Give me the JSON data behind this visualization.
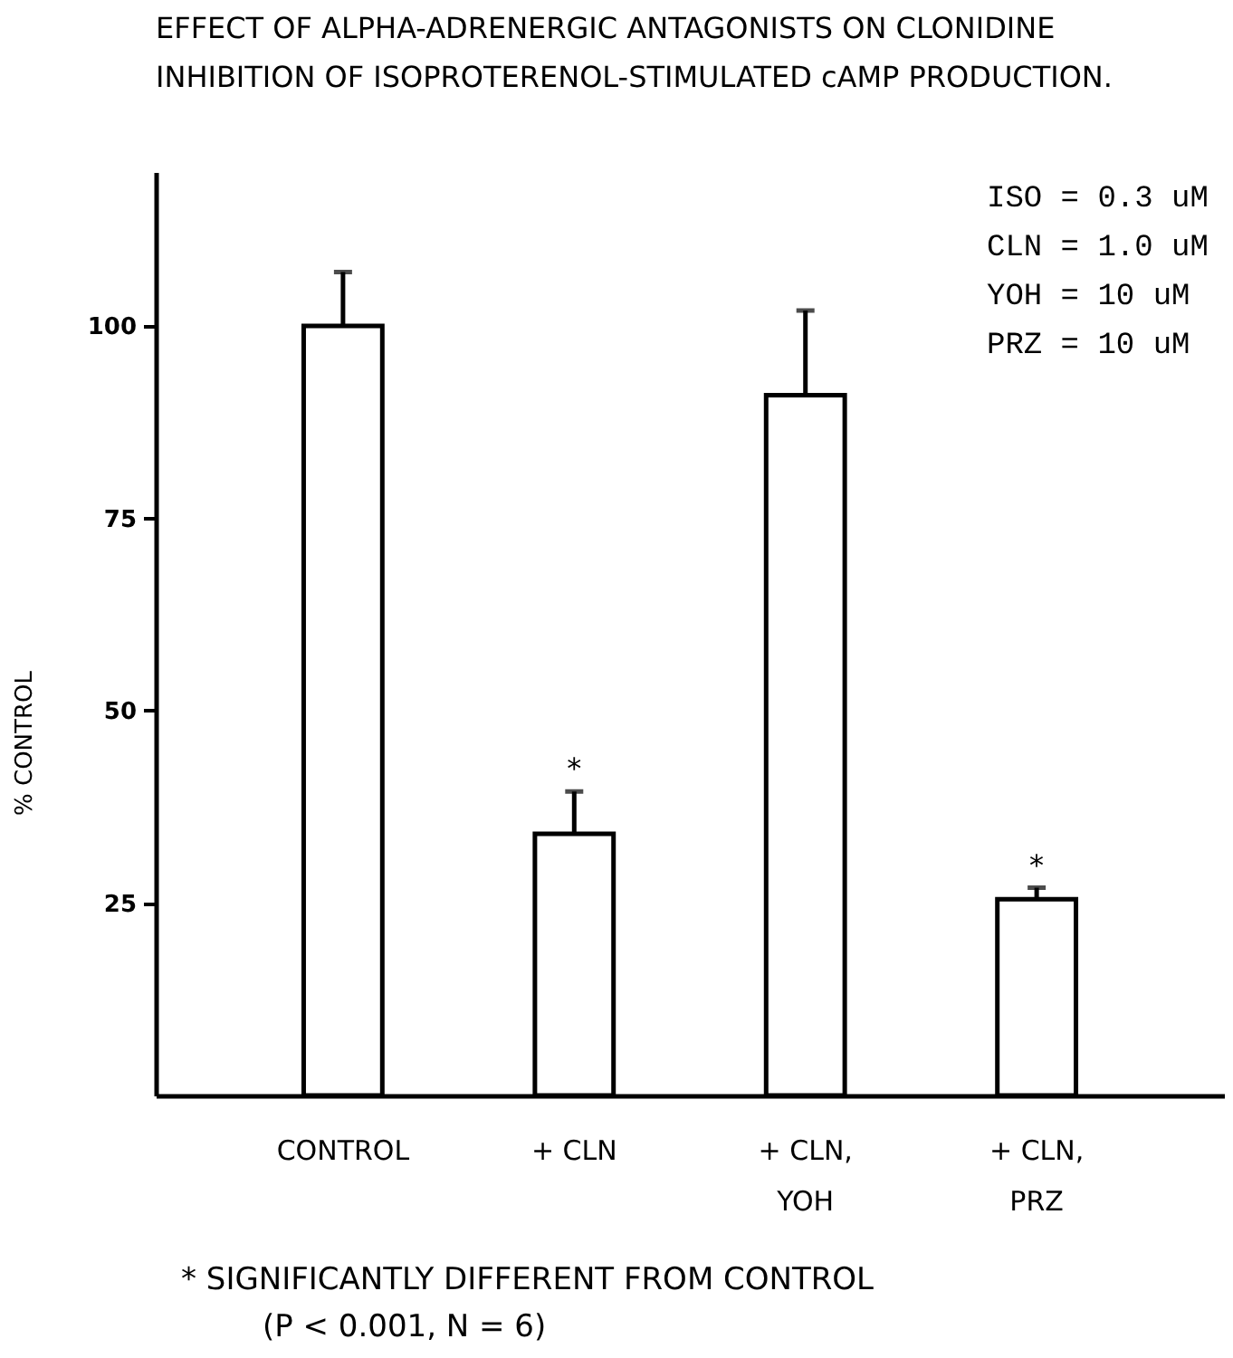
{
  "chart_data": {
    "type": "bar",
    "title": "EFFECT OF ALPHA-ADRENERGIC ANTAGONISTS ON CLONIDINE\nINHIBITION OF ISOPROTERENOL-STIMULATED cAMP PRODUCTION.",
    "ylabel": "% CONTROL",
    "categories": [
      "CONTROL",
      "+ CLN",
      "+ CLN,\nYOH",
      "+ CLN,\nPRZ"
    ],
    "values": [
      100,
      34,
      91,
      25.5
    ],
    "color": "#ffffff",
    "errors": [
      [
        100,
        107
      ],
      [
        34,
        39.5
      ],
      [
        91,
        102
      ],
      [
        25.5,
        27
      ]
    ],
    "ylim": [
      0,
      120
    ],
    "yticks": [
      25,
      50,
      75,
      100
    ],
    "annotations": [
      "ISO = 0.3 uM\nCLN = 1.0 uM\nYOH =  10 uM\nPRZ =  10 uM",
      {
        "text": "*",
        "x": "+ CLN",
        "y": 39.5
      },
      {
        "text": "*",
        "x": "+ CLN,\nPRZ",
        "y": 27
      },
      "* SIGNIFICANTLY DIFFERENT FROM CONTROL",
      "(P < 0.001, N = 6)"
    ]
  }
}
